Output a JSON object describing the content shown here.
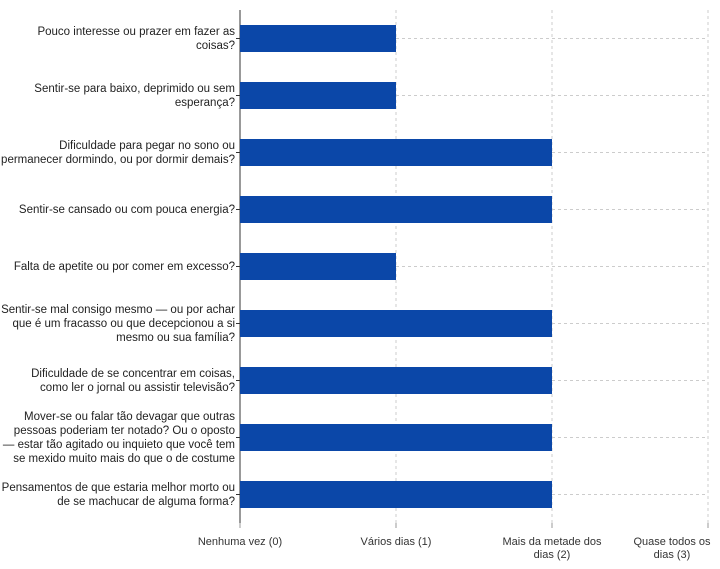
{
  "chart_data": {
    "type": "bar",
    "orientation": "horizontal",
    "categories": [
      "Pouco interesse ou prazer em fazer as coisas?",
      "Sentir-se para baixo, deprimido ou sem esperança?",
      "Dificuldade para pegar no sono ou permanecer dormindo, ou por dormir demais?",
      "Sentir-se cansado ou com pouca energia?",
      "Falta de apetite ou por comer em excesso?",
      "Sentir-se mal consigo mesmo — ou por achar que é um fracasso ou que decepcionou a si mesmo ou sua família?",
      "Dificuldade de se concentrar em coisas, como ler o jornal ou assistir televisão?",
      "Mover-se ou falar tão devagar que outras pessoas poderiam ter notado? Ou o oposto — estar tão agitado ou inquieto que você tem se mexido muito mais do que o de costume",
      "Pensamentos de que estaria melhor morto ou de se machucar de alguma forma?"
    ],
    "values": [
      1,
      1,
      2,
      2,
      1,
      2,
      2,
      2,
      2
    ],
    "xlim": [
      0,
      3
    ],
    "xticks": [
      {
        "value": 0,
        "label": "Nenhuma vez (0)"
      },
      {
        "value": 1,
        "label": "Vários dias (1)"
      },
      {
        "value": 2,
        "label": "Mais da metade dos dias (2)"
      },
      {
        "value": 3,
        "label": "Quase todos os dias (3)"
      }
    ],
    "grid": true,
    "bar_color": "#0b47a8",
    "grid_color": "#cccccc"
  }
}
